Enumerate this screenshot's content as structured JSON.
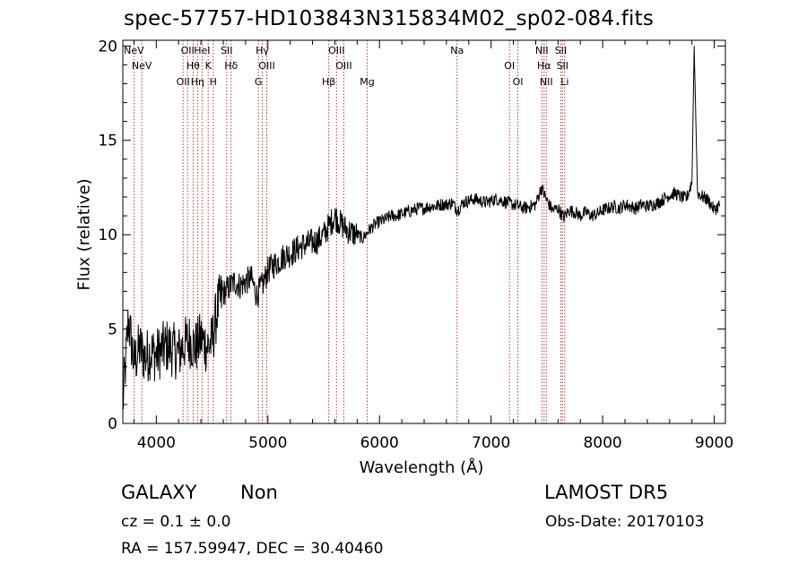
{
  "title": "spec-57757-HD103843N315834M02_sp02-084.fits",
  "info": {
    "class_label": "GALAXY",
    "subclass_label": "Non",
    "survey": "LAMOST DR5",
    "cz": "cz = 0.1 ± 0.0",
    "obs_date": "Obs-Date: 20170103",
    "radec": "RA = 157.59947, DEC =  30.40460"
  },
  "chart_data": {
    "type": "line",
    "title": "spec-57757-HD103843N315834M02_sp02-084.fits",
    "xlabel": "Wavelength (Å)",
    "ylabel": "Flux (relative)",
    "xlim": [
      3700,
      9100
    ],
    "ylim": [
      0,
      20.3
    ],
    "x_ticks": [
      4000,
      5000,
      6000,
      7000,
      8000,
      9000
    ],
    "y_ticks": [
      0,
      5,
      10,
      15,
      20
    ],
    "grid": false,
    "line_color": "#000000",
    "marker_color": "#cc3333",
    "series": [
      {
        "x": [
          3700,
          3750,
          3800,
          3850,
          3900,
          3950,
          4000,
          4050,
          4100,
          4150,
          4200,
          4250,
          4300,
          4350,
          4400,
          4450,
          4500,
          4550,
          4600,
          4650,
          4700,
          4750,
          4800,
          4850,
          4900,
          4950,
          5000,
          5050,
          5100,
          5150,
          5200,
          5250,
          5300,
          5350,
          5400,
          5450,
          5500,
          5550,
          5600,
          5650,
          5700,
          5750,
          5800,
          5850,
          5900,
          5950,
          6000,
          6050,
          6100,
          6150,
          6200,
          6250,
          6300,
          6350,
          6400,
          6450,
          6500,
          6550,
          6600,
          6650,
          6700,
          6750,
          6800,
          6850,
          6900,
          6950,
          7000,
          7050,
          7100,
          7150,
          7200,
          7250,
          7300,
          7350,
          7400,
          7450,
          7500,
          7550,
          7600,
          7650,
          7700,
          7750,
          7800,
          7850,
          7900,
          7950,
          8000,
          8050,
          8100,
          8150,
          8200,
          8250,
          8300,
          8350,
          8400,
          8450,
          8500,
          8550,
          8600,
          8650,
          8700,
          8750,
          8800,
          8820,
          8850,
          8900,
          8950,
          9000,
          9050
        ],
        "y": [
          1.0,
          5.5,
          3.2,
          4.0,
          3.5,
          3.8,
          3.6,
          3.9,
          4.1,
          3.9,
          3.7,
          4.2,
          4.4,
          4.0,
          4.5,
          4.1,
          4.3,
          6.2,
          6.9,
          7.2,
          7.5,
          7.3,
          7.5,
          7.7,
          6.8,
          7.3,
          8.1,
          8.4,
          8.6,
          8.9,
          9.0,
          9.2,
          9.4,
          9.5,
          9.6,
          9.7,
          10.0,
          10.5,
          11.0,
          10.6,
          10.3,
          10.1,
          10.0,
          9.8,
          10.2,
          10.5,
          10.7,
          10.8,
          11.0,
          11.0,
          11.1,
          11.2,
          11.3,
          11.4,
          11.4,
          11.5,
          11.5,
          11.6,
          11.6,
          11.7,
          11.3,
          11.7,
          11.8,
          11.9,
          11.8,
          11.7,
          11.8,
          11.9,
          11.8,
          11.7,
          11.6,
          11.5,
          11.4,
          11.5,
          11.6,
          12.5,
          11.8,
          11.3,
          11.4,
          10.9,
          11.3,
          11.2,
          11.0,
          11.2,
          11.0,
          11.1,
          11.3,
          11.4,
          11.5,
          11.4,
          11.6,
          11.5,
          11.4,
          11.6,
          11.5,
          11.6,
          11.7,
          11.9,
          12.1,
          12.2,
          12.0,
          11.9,
          12.8,
          20.0,
          12.2,
          12.0,
          11.8,
          11.3,
          11.6
        ]
      }
    ],
    "lines": [
      {
        "name": "NeV",
        "x": 3800
      },
      {
        "name": "NeV",
        "x": 3870
      },
      {
        "name": "OII",
        "x": 4240
      },
      {
        "name": "OII",
        "x": 4280
      },
      {
        "name": "Hθ",
        "x": 4330
      },
      {
        "name": "Hη",
        "x": 4370
      },
      {
        "name": "HeI",
        "x": 4410
      },
      {
        "name": "K",
        "x": 4465
      },
      {
        "name": "H",
        "x": 4510
      },
      {
        "name": "SII",
        "x": 4630
      },
      {
        "name": "Hδ",
        "x": 4670
      },
      {
        "name": "G",
        "x": 4915
      },
      {
        "name": "Hγ",
        "x": 4950
      },
      {
        "name": "OIII",
        "x": 4990
      },
      {
        "name": "Hβ",
        "x": 5545
      },
      {
        "name": "OIII",
        "x": 5615
      },
      {
        "name": "OIII",
        "x": 5680
      },
      {
        "name": "Mg",
        "x": 5890
      },
      {
        "name": "Na",
        "x": 6695
      },
      {
        "name": "OI",
        "x": 7165
      },
      {
        "name": "OI",
        "x": 7240
      },
      {
        "name": "NII",
        "x": 7455
      },
      {
        "name": "Hα",
        "x": 7475
      },
      {
        "name": "NII",
        "x": 7495
      },
      {
        "name": "SII",
        "x": 7625
      },
      {
        "name": "SII",
        "x": 7640
      },
      {
        "name": "Li",
        "x": 7660
      }
    ]
  }
}
